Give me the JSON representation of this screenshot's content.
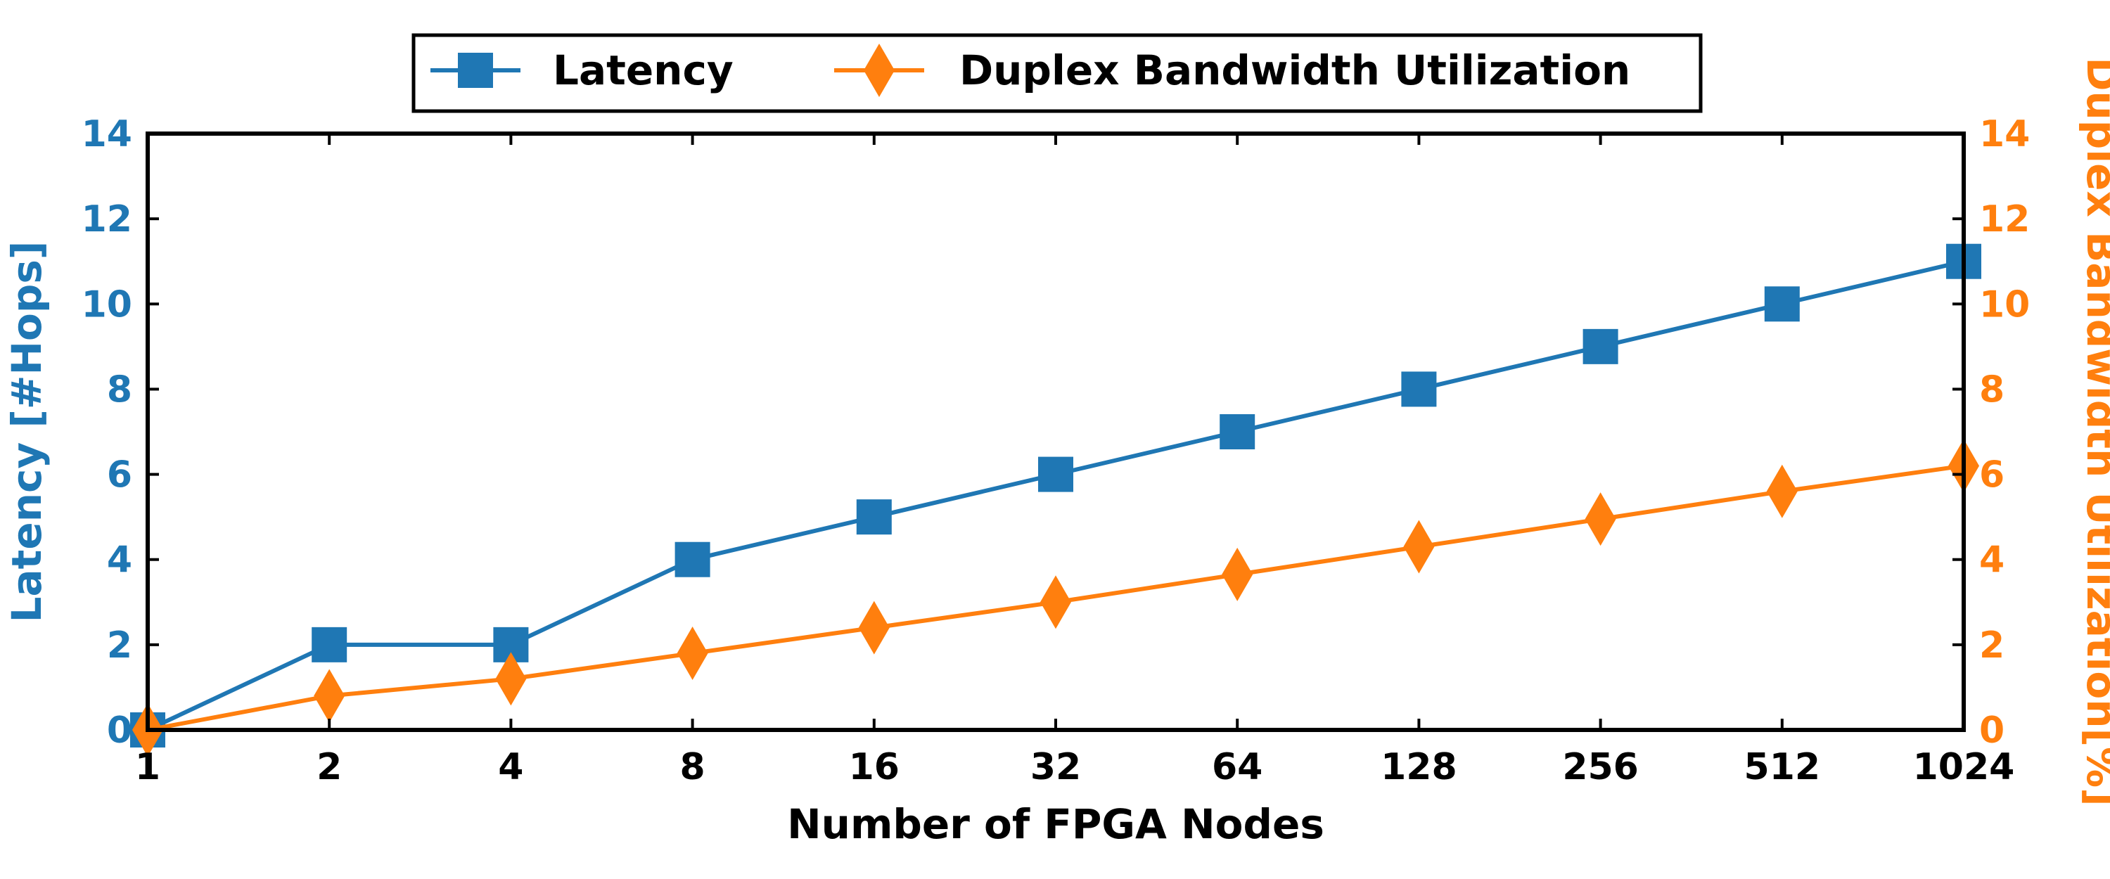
{
  "chart_data": {
    "type": "line",
    "title": "",
    "xlabel": "Number of FPGA Nodes",
    "ylabel_left": "Latency [#Hops]",
    "ylabel_right": "Duplex Bandwidth Utilization[%]",
    "categories": [
      "1",
      "2",
      "4",
      "8",
      "16",
      "32",
      "64",
      "128",
      "256",
      "512",
      "1024"
    ],
    "y_ticks": [
      "0",
      "2",
      "4",
      "6",
      "8",
      "10",
      "12",
      "14"
    ],
    "ylim_left": [
      0,
      14
    ],
    "ylim_right": [
      0,
      14
    ],
    "x_scale": "log2",
    "grid": false,
    "legend_position": "top-center",
    "series": [
      {
        "name": "Latency",
        "axis": "left",
        "marker": "square",
        "color": "#1f77b4",
        "values": [
          0,
          2,
          2,
          4,
          5,
          6,
          7,
          8,
          9,
          10,
          11
        ]
      },
      {
        "name": "Duplex Bandwidth Utilization",
        "axis": "right",
        "marker": "diamond",
        "color": "#ff7f0e",
        "values": [
          0.0,
          0.8,
          1.2,
          1.8,
          2.4,
          3.0,
          3.65,
          4.3,
          4.95,
          5.6,
          6.2
        ]
      }
    ]
  }
}
